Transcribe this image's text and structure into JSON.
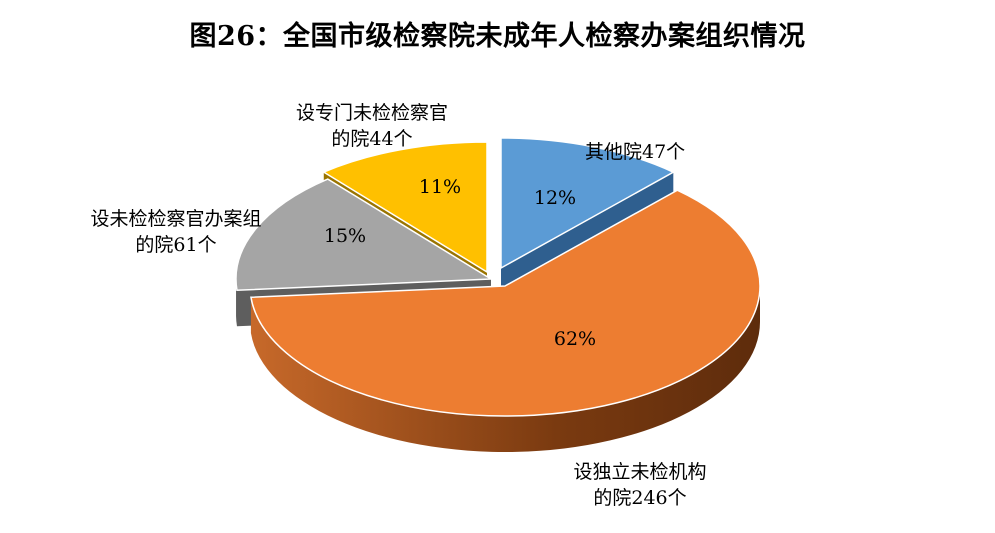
{
  "chart_data": {
    "type": "pie",
    "title": "图26：全国市级检察院未成年人检察办案组织情况",
    "slices": [
      {
        "label_lines": [
          "其他院47个"
        ],
        "value": 47,
        "percent_label": "12%",
        "color": "#5B9BD5",
        "side_color": "#2F5F8F"
      },
      {
        "label_lines": [
          "设独立未检机构",
          "的院246个"
        ],
        "value": 246,
        "percent_label": "62%",
        "color": "#ED7D31",
        "side_color": "#8A4513"
      },
      {
        "label_lines": [
          "设未检检察官办案组",
          "的院61个"
        ],
        "value": 61,
        "percent_label": "15%",
        "color": "#A5A5A5",
        "side_color": "#5E5E5E"
      },
      {
        "label_lines": [
          "设专门未检检察官",
          "的院44个"
        ],
        "value": 44,
        "percent_label": "11%",
        "color": "#FFC000",
        "side_color": "#9A7400"
      }
    ]
  }
}
